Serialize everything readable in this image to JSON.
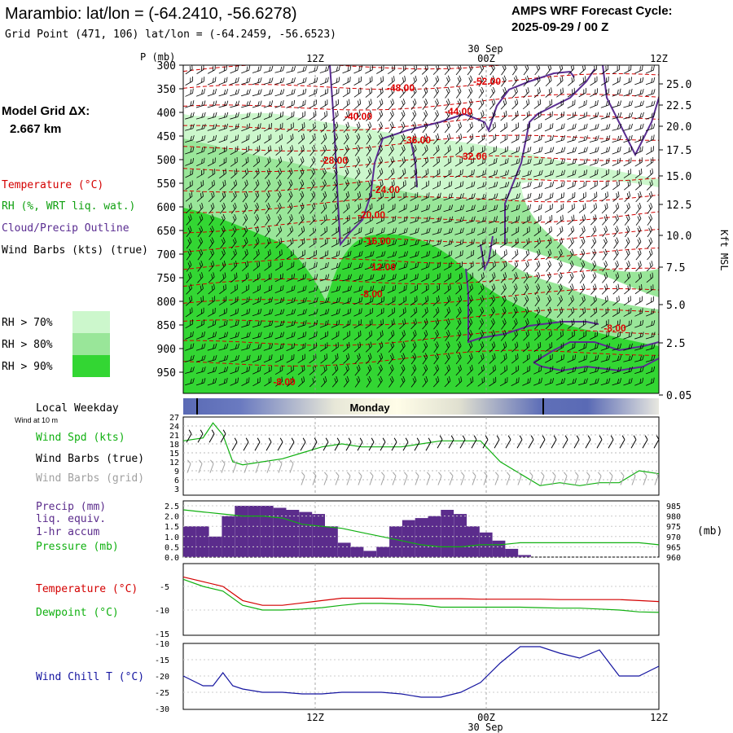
{
  "header": {
    "title": "Marambio:  lat/lon = (-64.2410, -56.6278)",
    "subtitle": "Grid Point (471, 106) lat/lon = (-64.2459, -56.6523)",
    "cycle_title": "AMPS WRF Forecast Cycle:",
    "cycle_value": "2025-09-29 / 00  Z",
    "date_label": "30 Sep",
    "model_grid_label": "Model Grid ΔX:",
    "model_grid_value": "2.667 km"
  },
  "legend": {
    "temperature": "Temperature (°C)",
    "rh": "RH (%, WRT liq. wat.)",
    "cloud": "Cloud/Precip Outline",
    "wind_barbs": "Wind Barbs (kts) (true)",
    "rh70": "RH > 70%",
    "rh80": "RH > 80%",
    "rh90": "RH > 90%",
    "local_weekday": "Local Weekday",
    "wind_at": "Wind at 10 m",
    "weekday_name": "Monday",
    "wind_spd": "Wind Spd (kts)",
    "wind_barbs_true": "Wind Barbs (true)",
    "wind_barbs_grid": "Wind Barbs (grid)",
    "precip1": "Precip (mm)",
    "precip2": "liq. equiv.",
    "precip3": "1-hr accum",
    "pressure": "Pressure (mb)",
    "pressure_unit": "(mb)",
    "temp2": "Temperature (°C)",
    "dewpoint": "Dewpoint (°C)",
    "windchill": "Wind Chill T (°C)"
  },
  "colors": {
    "rh70": "#ccf7cc",
    "rh80": "#99e699",
    "rh90": "#33d633",
    "temperature": "#d40000",
    "cloud": "#5a2d91",
    "precip": "#5b2c8c",
    "pressure": "#10b010",
    "windchill": "#1515a0",
    "gray_text": "#a0a0a0"
  },
  "chart_data": [
    {
      "type": "area",
      "name": "cross-section",
      "x_ticks": [
        "12Z",
        "00Z",
        "12Z"
      ],
      "p_label": "P (mb)",
      "p_levels": [
        300,
        350,
        400,
        450,
        500,
        550,
        600,
        650,
        700,
        750,
        800,
        850,
        900,
        950
      ],
      "right_label": "Kft MSL",
      "height_ticks": [
        "25.0",
        "22.5",
        "20.0",
        "17.5",
        "15.0",
        "12.5",
        "10.0",
        "7.5",
        "5.0",
        "2.5",
        "0.05"
      ],
      "temp_contour_labels": [
        "-52.00",
        "-48.00",
        "-44.00",
        "-40.00",
        "-36.00",
        "-32.00",
        "-28.00",
        "-24.00",
        "-20.00",
        "-16.00",
        "-12.00",
        "-8.00",
        "-8.00",
        "-8.00"
      ]
    },
    {
      "type": "line",
      "name": "wind-speed",
      "y_ticks": [
        "27",
        "24",
        "21",
        "18",
        "15",
        "12",
        "9",
        "6",
        "3"
      ],
      "x": [
        0,
        2,
        3,
        4,
        5,
        6,
        8,
        10,
        12,
        14,
        16,
        18,
        20,
        22,
        24,
        26,
        28,
        30,
        32,
        34,
        36,
        38,
        40,
        42,
        44,
        46,
        48
      ],
      "values": [
        19,
        20,
        25,
        21,
        12,
        11,
        12,
        13,
        15,
        17,
        18,
        17,
        17,
        17,
        18,
        19,
        19,
        19,
        12,
        8,
        4,
        5,
        4,
        5,
        5,
        9,
        8
      ]
    },
    {
      "type": "bar",
      "name": "precip-pressure",
      "precip_ticks": [
        "2.5",
        "2.0",
        "1.5",
        "1.0",
        "0.5",
        "0.0"
      ],
      "pressure_ticks": [
        "985",
        "980",
        "975",
        "970",
        "965",
        "960"
      ],
      "precip_mm": [
        1.5,
        1.5,
        1.0,
        2.0,
        2.5,
        2.5,
        2.5,
        2.4,
        2.3,
        2.2,
        2.1,
        1.5,
        0.7,
        0.5,
        0.3,
        0.5,
        1.5,
        1.8,
        1.9,
        2.0,
        2.3,
        2.1,
        1.5,
        1.2,
        0.8,
        0.4,
        0.1
      ],
      "pressure_x": [
        0,
        2,
        4,
        6,
        8,
        10,
        12,
        14,
        16,
        18,
        20,
        22,
        24,
        26,
        28,
        30,
        32,
        34,
        36,
        38,
        40,
        42,
        44,
        46,
        48
      ],
      "pressure_mb": [
        983,
        982,
        981,
        980,
        980,
        979,
        976,
        975,
        974,
        972,
        970,
        968,
        966,
        965,
        965,
        966,
        966,
        967,
        967,
        967,
        967,
        967,
        967,
        967,
        966
      ]
    },
    {
      "type": "line",
      "name": "temperature-dewpoint",
      "y_ticks": [
        "-5",
        "-10",
        "-15"
      ],
      "x": [
        0,
        2,
        4,
        6,
        8,
        10,
        12,
        14,
        16,
        18,
        20,
        22,
        24,
        26,
        28,
        30,
        32,
        34,
        36,
        38,
        40,
        42,
        44,
        46,
        48
      ],
      "temperature": [
        -3,
        -4,
        -5,
        -8,
        -9,
        -9,
        -8.5,
        -8,
        -7.5,
        -7.5,
        -7.5,
        -7.6,
        -7.6,
        -7.6,
        -7.6,
        -7.7,
        -7.7,
        -7.7,
        -7.7,
        -7.8,
        -7.8,
        -7.8,
        -7.8,
        -8,
        -8.2
      ],
      "dewpoint": [
        -3.5,
        -5,
        -6,
        -9,
        -10,
        -10,
        -9.8,
        -9.5,
        -9,
        -8.6,
        -8.6,
        -8.7,
        -8.9,
        -9.4,
        -9.4,
        -9.4,
        -9.4,
        -9.4,
        -9.5,
        -9.6,
        -9.6,
        -9.8,
        -10,
        -10.4,
        -10.5
      ]
    },
    {
      "type": "line",
      "name": "wind-chill",
      "y_ticks": [
        "-10",
        "-15",
        "-20",
        "-25",
        "-30"
      ],
      "x": [
        0,
        2,
        3,
        4,
        5,
        6,
        8,
        10,
        12,
        14,
        16,
        18,
        20,
        22,
        24,
        26,
        28,
        30,
        32,
        34,
        36,
        38,
        40,
        42,
        44,
        46,
        48
      ],
      "values": [
        -20,
        -23,
        -23,
        -19,
        -23,
        -24,
        -25,
        -25,
        -25.5,
        -25.5,
        -25,
        -25,
        -25,
        -25.5,
        -26.5,
        -26.5,
        -25,
        -22,
        -16,
        -11,
        -11,
        -13,
        -14.5,
        -12,
        -20,
        -20,
        -17
      ]
    }
  ],
  "bottom_ticks": [
    "12Z",
    "00Z",
    "12Z"
  ],
  "bottom_date": "30 Sep"
}
